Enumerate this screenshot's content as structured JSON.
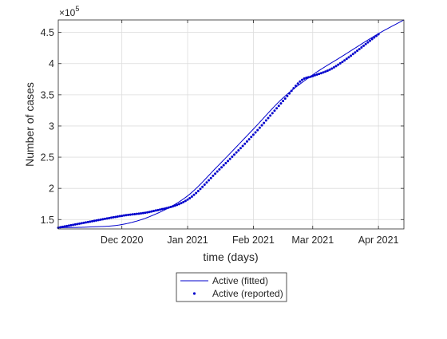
{
  "chart_data": {
    "type": "line",
    "title": "",
    "xlabel": "time (days)",
    "ylabel": "Number of cases",
    "y_exponent_label": {
      "base": "×10",
      "exponent": "5"
    },
    "xlim": [
      "2020-11-01",
      "2021-04-13"
    ],
    "ylim": [
      1.35,
      4.7
    ],
    "x_ticks": [
      {
        "date": "2020-12-01",
        "label": "Dec 2020"
      },
      {
        "date": "2021-01-01",
        "label": "Jan 2021"
      },
      {
        "date": "2021-02-01",
        "label": "Feb 2021"
      },
      {
        "date": "2021-03-01",
        "label": "Mar 2021"
      },
      {
        "date": "2021-04-01",
        "label": "Apr 2021"
      }
    ],
    "y_ticks": [
      {
        "value": 1.5,
        "label": "1.5"
      },
      {
        "value": 2.0,
        "label": "2"
      },
      {
        "value": 2.5,
        "label": "2.5"
      },
      {
        "value": 3.0,
        "label": "3"
      },
      {
        "value": 3.5,
        "label": "3.5"
      },
      {
        "value": 4.0,
        "label": "4"
      },
      {
        "value": 4.5,
        "label": "4.5"
      }
    ],
    "grid": true,
    "legend_position": "bottom (outside)",
    "series": [
      {
        "name": "Active (fitted)",
        "style": "line",
        "color": "#0000cc",
        "points": [
          [
            "2020-11-01",
            1.37
          ],
          [
            "2020-11-15",
            1.38
          ],
          [
            "2020-12-01",
            1.42
          ],
          [
            "2020-12-15",
            1.56
          ],
          [
            "2021-01-01",
            1.88
          ],
          [
            "2021-01-15",
            2.35
          ],
          [
            "2021-02-01",
            2.95
          ],
          [
            "2021-02-15",
            3.45
          ],
          [
            "2021-03-01",
            3.82
          ],
          [
            "2021-03-15",
            4.12
          ],
          [
            "2021-04-01",
            4.48
          ],
          [
            "2021-04-13",
            4.7
          ]
        ]
      },
      {
        "name": "Active (reported)",
        "style": "markers",
        "color": "#0000cc",
        "points": [
          [
            "2020-11-01",
            1.37
          ],
          [
            "2020-11-15",
            1.46
          ],
          [
            "2020-12-01",
            1.56
          ],
          [
            "2020-12-15",
            1.63
          ],
          [
            "2021-01-01",
            1.82
          ],
          [
            "2021-01-15",
            2.27
          ],
          [
            "2021-02-01",
            2.86
          ],
          [
            "2021-02-15",
            3.4
          ],
          [
            "2021-02-24",
            3.74
          ],
          [
            "2021-03-01",
            3.8
          ],
          [
            "2021-03-10",
            3.92
          ],
          [
            "2021-04-01",
            4.47
          ]
        ]
      }
    ]
  }
}
